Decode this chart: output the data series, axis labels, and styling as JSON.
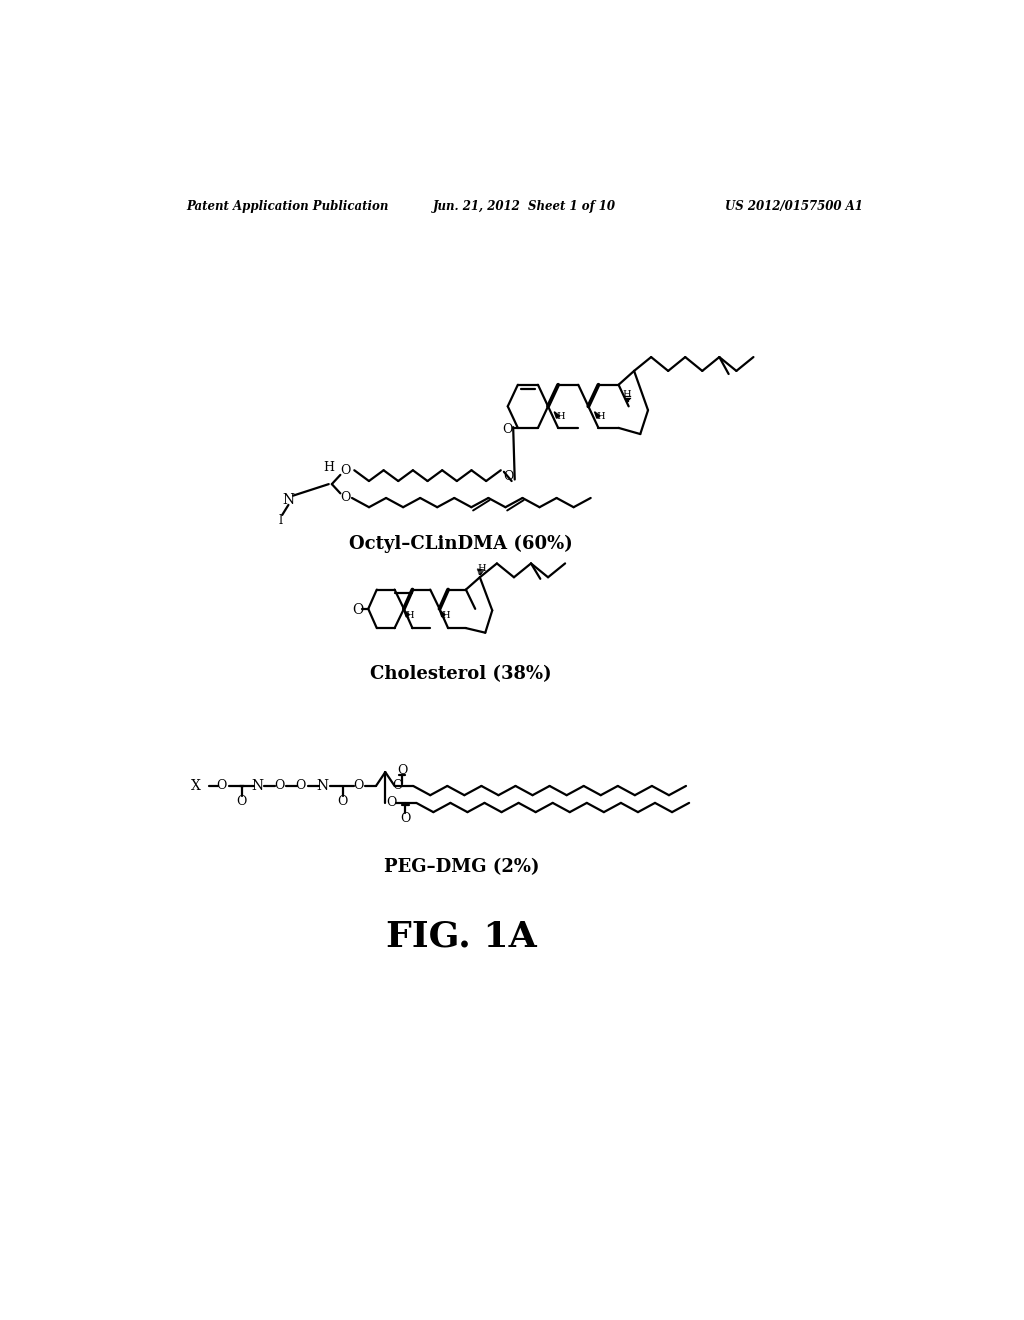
{
  "background_color": "#ffffff",
  "header_left": "Patent Application Publication",
  "header_center": "Jun. 21, 2012  Sheet 1 of 10",
  "header_right": "US 2012/0157500 A1",
  "label1": "Octyl–CLinDMA (60%)",
  "label2": "Cholesterol (38%)",
  "label3": "PEG–DMG (2%)",
  "fig_label": "FIG. 1A",
  "header_fontsize": 8.5,
  "label_fontsize": 13,
  "fig_label_fontsize": 26
}
